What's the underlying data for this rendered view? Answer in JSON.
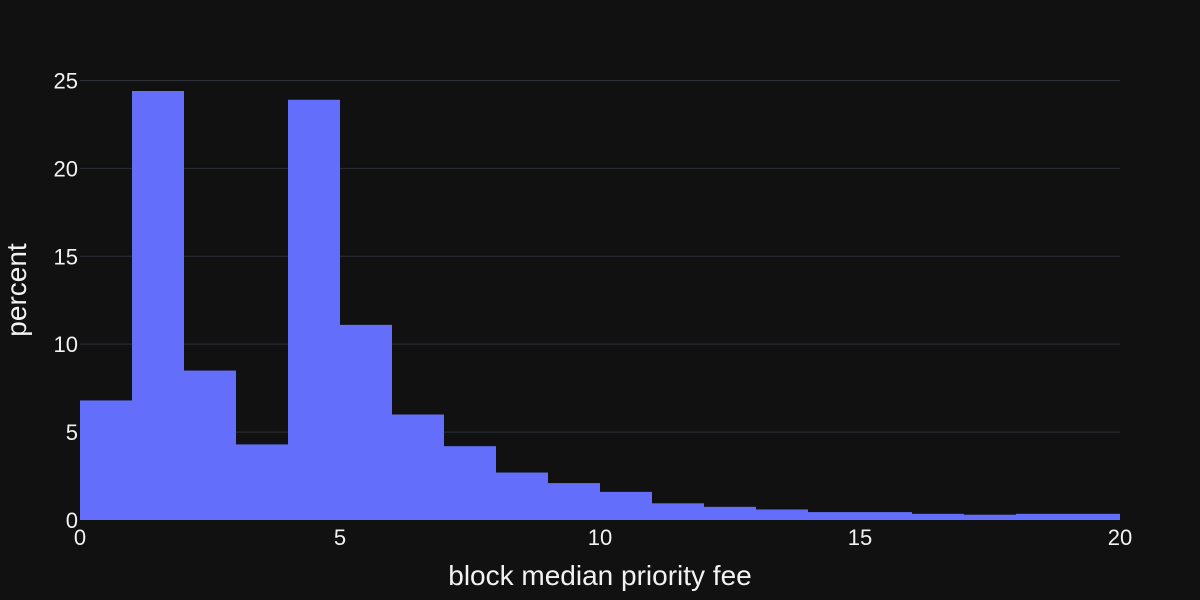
{
  "chart_data": {
    "type": "bar",
    "subtype": "histogram",
    "title": "",
    "xlabel": "block median priority fee",
    "ylabel": "percent",
    "xlim": [
      0,
      20
    ],
    "ylim": [
      0,
      27.3
    ],
    "x_ticks": [
      0,
      5,
      10,
      15,
      20
    ],
    "y_ticks": [
      0,
      5,
      10,
      15,
      20,
      25
    ],
    "grid": true,
    "legend": "none",
    "bin_width": 1,
    "bins": [
      {
        "x0": 0,
        "x1": 1,
        "value": 6.8
      },
      {
        "x0": 1,
        "x1": 2,
        "value": 24.4
      },
      {
        "x0": 2,
        "x1": 3,
        "value": 8.5
      },
      {
        "x0": 3,
        "x1": 4,
        "value": 4.3
      },
      {
        "x0": 4,
        "x1": 5,
        "value": 23.9
      },
      {
        "x0": 5,
        "x1": 6,
        "value": 11.1
      },
      {
        "x0": 6,
        "x1": 7,
        "value": 6.0
      },
      {
        "x0": 7,
        "x1": 8,
        "value": 4.2
      },
      {
        "x0": 8,
        "x1": 9,
        "value": 2.7
      },
      {
        "x0": 9,
        "x1": 10,
        "value": 2.1
      },
      {
        "x0": 10,
        "x1": 11,
        "value": 1.6
      },
      {
        "x0": 11,
        "x1": 12,
        "value": 0.95
      },
      {
        "x0": 12,
        "x1": 13,
        "value": 0.75
      },
      {
        "x0": 13,
        "x1": 14,
        "value": 0.6
      },
      {
        "x0": 14,
        "x1": 15,
        "value": 0.45
      },
      {
        "x0": 15,
        "x1": 16,
        "value": 0.45
      },
      {
        "x0": 16,
        "x1": 17,
        "value": 0.35
      },
      {
        "x0": 17,
        "x1": 18,
        "value": 0.3
      },
      {
        "x0": 18,
        "x1": 19,
        "value": 0.35
      },
      {
        "x0": 19,
        "x1": 20,
        "value": 0.35
      }
    ],
    "colors": {
      "background": "#111111",
      "bar": "#636efa",
      "grid": "#2c3038",
      "text": "#f2f2f2"
    }
  }
}
